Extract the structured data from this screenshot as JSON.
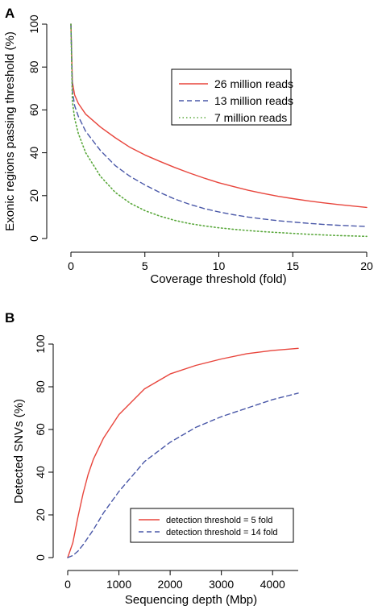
{
  "chart_data": [
    {
      "panel": "A",
      "type": "line",
      "xlabel": "Coverage threshold (fold)",
      "ylabel": "Exonic regions passing threshold (%)",
      "xlim": [
        0,
        20
      ],
      "ylim": [
        0,
        100
      ],
      "xticks": [
        "0",
        "5",
        "10",
        "15",
        "20"
      ],
      "yticks": [
        "0",
        "20",
        "40",
        "60",
        "80",
        "100"
      ],
      "grid": false,
      "legend_position": "top-right",
      "series": [
        {
          "name": "26 million reads",
          "color": "#e8453c",
          "line_style": "solid",
          "x": [
            0,
            0.1,
            0.25,
            0.5,
            1,
            2,
            3,
            4,
            5,
            6,
            7,
            8,
            9,
            10,
            11,
            12,
            13,
            14,
            15,
            16,
            17,
            18,
            19,
            20
          ],
          "y": [
            100,
            73,
            67,
            63,
            58,
            52,
            47,
            42.5,
            39,
            36,
            33.2,
            30.6,
            28.2,
            26,
            24.2,
            22.5,
            21,
            19.7,
            18.6,
            17.6,
            16.7,
            15.9,
            15.2,
            14.5
          ]
        },
        {
          "name": "13 million reads",
          "color": "#4a58a8",
          "line_style": "dashed",
          "x": [
            0,
            0.1,
            0.25,
            0.5,
            1,
            2,
            3,
            4,
            5,
            6,
            7,
            8,
            9,
            10,
            11,
            12,
            13,
            14,
            15,
            16,
            17,
            18,
            19,
            20
          ],
          "y": [
            100,
            69,
            62,
            57,
            50,
            41,
            34,
            29,
            25,
            21.5,
            18.5,
            16,
            14,
            12.4,
            11.1,
            10,
            9.1,
            8.3,
            7.7,
            7.1,
            6.6,
            6.2,
            5.9,
            5.6
          ]
        },
        {
          "name": "7 million reads",
          "color": "#5aa83c",
          "line_style": "dotted",
          "x": [
            0,
            0.1,
            0.25,
            0.5,
            1,
            2,
            3,
            4,
            5,
            6,
            7,
            8,
            9,
            10,
            11,
            12,
            13,
            14,
            15,
            16,
            17,
            18,
            19,
            20
          ],
          "y": [
            100,
            64,
            56,
            49,
            40,
            29,
            21.5,
            16.5,
            13,
            10.5,
            8.5,
            7,
            5.9,
            5,
            4.3,
            3.7,
            3.2,
            2.8,
            2.4,
            2,
            1.7,
            1.4,
            1.2,
            1
          ]
        }
      ]
    },
    {
      "panel": "B",
      "type": "line",
      "xlabel": "Sequencing depth (Mbp)",
      "ylabel": "Detected SNVs (%)",
      "xlim": [
        0,
        4500
      ],
      "ylim": [
        0,
        100
      ],
      "xticks": [
        "0",
        "1000",
        "2000",
        "3000",
        "4000"
      ],
      "yticks": [
        "0",
        "20",
        "40",
        "60",
        "80",
        "100"
      ],
      "grid": false,
      "legend_position": "bottom-right",
      "series": [
        {
          "name": "detection threshold = 5 fold",
          "color": "#e8453c",
          "line_style": "solid",
          "x": [
            0,
            100,
            200,
            300,
            400,
            500,
            700,
            1000,
            1500,
            2000,
            2500,
            3000,
            3500,
            4000,
            4500
          ],
          "y": [
            0,
            7,
            19,
            30,
            39,
            46,
            56,
            67,
            79,
            86,
            90,
            93,
            95.5,
            97,
            98
          ]
        },
        {
          "name": "detection threshold = 14 fold",
          "color": "#4a58a8",
          "line_style": "dashed",
          "x": [
            0,
            100,
            200,
            300,
            500,
            700,
            1000,
            1500,
            2000,
            2500,
            3000,
            3500,
            4000,
            4500
          ],
          "y": [
            0,
            1,
            3,
            6,
            13,
            21,
            31,
            45,
            54,
            61,
            66,
            70,
            74,
            77
          ]
        }
      ]
    }
  ]
}
